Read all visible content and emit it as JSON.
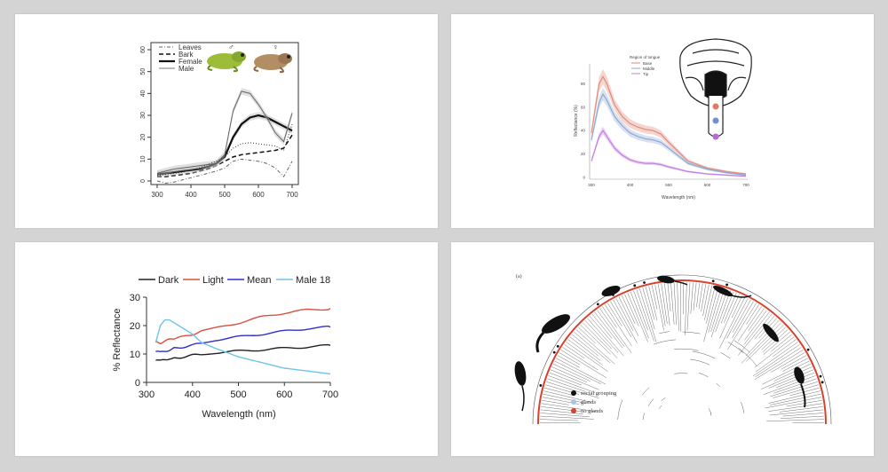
{
  "chart_data": [
    {
      "type": "line",
      "x": [
        300,
        325,
        350,
        375,
        400,
        425,
        450,
        475,
        500,
        525,
        550,
        575,
        600,
        625,
        650,
        675,
        700
      ],
      "series": [
        {
          "name": "Leaves",
          "style": "dashdot",
          "values": [
            0,
            -1,
            -0.5,
            0.5,
            1.5,
            2.5,
            3.5,
            4.5,
            6,
            9,
            10,
            9.5,
            9,
            8,
            6,
            2,
            9
          ]
        },
        {
          "name": "Bark",
          "style": "dashed",
          "values": [
            2,
            2,
            2.5,
            3,
            3.5,
            4.5,
            5.5,
            7,
            9,
            11,
            12,
            12.5,
            13,
            13.5,
            14,
            15,
            21
          ]
        },
        {
          "name": "Female",
          "style": "solid-thick",
          "values": [
            3,
            3.5,
            4,
            4.5,
            5,
            5.5,
            6.5,
            8,
            11,
            20,
            26,
            29,
            30,
            29,
            27,
            25,
            23
          ]
        },
        {
          "name": "Male",
          "style": "solid-thin",
          "values": [
            3.5,
            4.5,
            5.5,
            6,
            6.5,
            7,
            7.5,
            8,
            12,
            32,
            41,
            40,
            35,
            29,
            22,
            18,
            31
          ]
        },
        {
          "name": "",
          "style": "dotted",
          "values": [
            2.5,
            3,
            3.5,
            4,
            5,
            6,
            7.5,
            9,
            11,
            15,
            17,
            17.5,
            17,
            16.5,
            16,
            14,
            26
          ]
        }
      ],
      "xlim": [
        300,
        700
      ],
      "ylim": [
        0,
        60
      ],
      "xticks": [
        "300",
        "400",
        "500",
        "600",
        "700"
      ],
      "yticks": [
        "0",
        "10",
        "20",
        "30",
        "40",
        "50",
        "60"
      ],
      "legend": [
        "Leaves",
        "Bark",
        "Female",
        "Male"
      ],
      "symbols": {
        "male": "♂",
        "female": "♀"
      }
    },
    {
      "type": "line",
      "x": [
        300,
        320,
        330,
        340,
        360,
        380,
        400,
        420,
        440,
        460,
        480,
        500,
        550,
        600,
        650,
        700
      ],
      "series": [
        {
          "name": "Base",
          "color": "#e08a7a",
          "values": [
            38,
            80,
            86,
            80,
            62,
            52,
            46,
            43,
            41,
            40,
            37,
            30,
            14,
            8,
            5,
            3
          ]
        },
        {
          "name": "Middle",
          "color": "#8ea8d4",
          "values": [
            32,
            64,
            71,
            66,
            52,
            44,
            38,
            35,
            33,
            32,
            30,
            25,
            12,
            7,
            4,
            2
          ]
        },
        {
          "name": "Tip",
          "color": "#c27ee0",
          "values": [
            14,
            35,
            40,
            35,
            25,
            19,
            15,
            13,
            12,
            12,
            11,
            9,
            5,
            3,
            2,
            1
          ]
        }
      ],
      "xlim": [
        300,
        700
      ],
      "ylim": [
        0,
        100
      ],
      "xticks": [
        "300",
        "400",
        "500",
        "600",
        "700"
      ],
      "yticks": [
        "0",
        "20",
        "40",
        "60",
        "80"
      ],
      "legend_title": "Region of tongue",
      "legend": [
        "Base",
        "Middle",
        "Tip"
      ],
      "xlabel": "Wavelength (nm)",
      "ylabel": "Reflectance (%)"
    },
    {
      "type": "line",
      "x": [
        320,
        330,
        340,
        350,
        360,
        380,
        400,
        420,
        450,
        500,
        550,
        600,
        650,
        700
      ],
      "series": [
        {
          "name": "Dark",
          "color": "#222222",
          "values": [
            8,
            7.5,
            8,
            8.5,
            8.5,
            9,
            9.5,
            10,
            10.5,
            11,
            11.5,
            12,
            12.5,
            13
          ]
        },
        {
          "name": "Light",
          "color": "#d9503f",
          "values": [
            14.5,
            14,
            14.5,
            15,
            15.5,
            16,
            17,
            18,
            19,
            21,
            23,
            24.5,
            25.5,
            26
          ]
        },
        {
          "name": "Mean",
          "color": "#2f2fd0",
          "values": [
            11,
            10.5,
            11,
            11.5,
            12,
            12.5,
            13,
            14,
            15,
            16,
            17,
            18,
            19,
            19.5
          ]
        },
        {
          "name": "Male 18",
          "color": "#6ec3ea",
          "values": [
            14,
            20,
            22,
            22,
            21,
            19,
            17,
            14,
            12,
            9,
            7,
            5,
            4,
            3
          ]
        }
      ],
      "xlim": [
        300,
        700
      ],
      "ylim": [
        0,
        30
      ],
      "xticks": [
        "300",
        "400",
        "500",
        "600",
        "700"
      ],
      "yticks": [
        "0",
        "10",
        "20",
        "30"
      ],
      "legend": [
        "Dark",
        "Light",
        "Mean",
        "Male 18"
      ],
      "xlabel": "Wavelength (nm)",
      "ylabel": "% Reflectance"
    },
    {
      "type": "tree",
      "panel_label": "(a)",
      "legend": [
        {
          "label": "social grouping",
          "color": "#111111"
        },
        {
          "label": "glands",
          "color": "#a9c4e8"
        },
        {
          "label": "no glands",
          "color": "#d9412e"
        }
      ]
    }
  ]
}
